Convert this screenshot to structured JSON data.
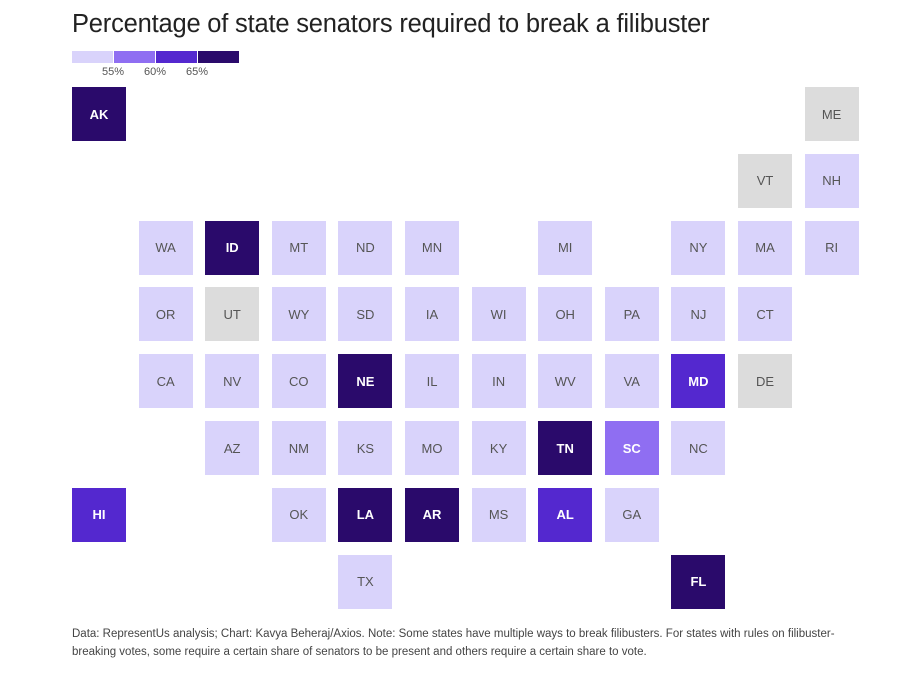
{
  "title": "Percentage of state senators required to break a filibuster",
  "footnote": "Data: RepresentUs analysis; Chart: Kavya Beheraj/Axios. Note: Some states have multiple ways to break filibusters. For states with rules on filibuster-breaking votes, some require a certain share of senators to be present and others require a certain share to vote.",
  "colors": {
    "none": "#dcdcdc",
    "below55": "#d9d3fb",
    "55": "#8f6ef2",
    "60": "#5428cf",
    "65": "#2a0a6b",
    "label_dark": "#555555",
    "label_light": "#ffffff"
  },
  "legend": {
    "levels": [
      "below55",
      "55",
      "60",
      "65"
    ],
    "labels": [
      "55%",
      "60%",
      "65%"
    ]
  },
  "chart_data": {
    "type": "tile-map",
    "title": "Percentage of state senators required to break a filibuster",
    "legend_thresholds": [
      "55%",
      "60%",
      "65%"
    ],
    "states": [
      {
        "abbr": "AK",
        "level": "65",
        "row": 0,
        "col": 0
      },
      {
        "abbr": "ME",
        "level": "none",
        "row": 0,
        "col": 11
      },
      {
        "abbr": "VT",
        "level": "none",
        "row": 1,
        "col": 10
      },
      {
        "abbr": "NH",
        "level": "below55",
        "row": 1,
        "col": 11
      },
      {
        "abbr": "WA",
        "level": "below55",
        "row": 2,
        "col": 1
      },
      {
        "abbr": "ID",
        "level": "65",
        "row": 2,
        "col": 2
      },
      {
        "abbr": "MT",
        "level": "below55",
        "row": 2,
        "col": 3
      },
      {
        "abbr": "ND",
        "level": "below55",
        "row": 2,
        "col": 4
      },
      {
        "abbr": "MN",
        "level": "below55",
        "row": 2,
        "col": 5
      },
      {
        "abbr": "MI",
        "level": "below55",
        "row": 2,
        "col": 7
      },
      {
        "abbr": "NY",
        "level": "below55",
        "row": 2,
        "col": 9
      },
      {
        "abbr": "MA",
        "level": "below55",
        "row": 2,
        "col": 10
      },
      {
        "abbr": "RI",
        "level": "below55",
        "row": 2,
        "col": 11
      },
      {
        "abbr": "OR",
        "level": "below55",
        "row": 3,
        "col": 1
      },
      {
        "abbr": "UT",
        "level": "none",
        "row": 3,
        "col": 2
      },
      {
        "abbr": "WY",
        "level": "below55",
        "row": 3,
        "col": 3
      },
      {
        "abbr": "SD",
        "level": "below55",
        "row": 3,
        "col": 4
      },
      {
        "abbr": "IA",
        "level": "below55",
        "row": 3,
        "col": 5
      },
      {
        "abbr": "WI",
        "level": "below55",
        "row": 3,
        "col": 6
      },
      {
        "abbr": "OH",
        "level": "below55",
        "row": 3,
        "col": 7
      },
      {
        "abbr": "PA",
        "level": "below55",
        "row": 3,
        "col": 8
      },
      {
        "abbr": "NJ",
        "level": "below55",
        "row": 3,
        "col": 9
      },
      {
        "abbr": "CT",
        "level": "below55",
        "row": 3,
        "col": 10
      },
      {
        "abbr": "CA",
        "level": "below55",
        "row": 4,
        "col": 1
      },
      {
        "abbr": "NV",
        "level": "below55",
        "row": 4,
        "col": 2
      },
      {
        "abbr": "CO",
        "level": "below55",
        "row": 4,
        "col": 3
      },
      {
        "abbr": "NE",
        "level": "65",
        "row": 4,
        "col": 4
      },
      {
        "abbr": "IL",
        "level": "below55",
        "row": 4,
        "col": 5
      },
      {
        "abbr": "IN",
        "level": "below55",
        "row": 4,
        "col": 6
      },
      {
        "abbr": "WV",
        "level": "below55",
        "row": 4,
        "col": 7
      },
      {
        "abbr": "VA",
        "level": "below55",
        "row": 4,
        "col": 8
      },
      {
        "abbr": "MD",
        "level": "60",
        "row": 4,
        "col": 9
      },
      {
        "abbr": "DE",
        "level": "none",
        "row": 4,
        "col": 10
      },
      {
        "abbr": "AZ",
        "level": "below55",
        "row": 5,
        "col": 2
      },
      {
        "abbr": "NM",
        "level": "below55",
        "row": 5,
        "col": 3
      },
      {
        "abbr": "KS",
        "level": "below55",
        "row": 5,
        "col": 4
      },
      {
        "abbr": "MO",
        "level": "below55",
        "row": 5,
        "col": 5
      },
      {
        "abbr": "KY",
        "level": "below55",
        "row": 5,
        "col": 6
      },
      {
        "abbr": "TN",
        "level": "65",
        "row": 5,
        "col": 7
      },
      {
        "abbr": "SC",
        "level": "55",
        "row": 5,
        "col": 8
      },
      {
        "abbr": "NC",
        "level": "below55",
        "row": 5,
        "col": 9
      },
      {
        "abbr": "HI",
        "level": "60",
        "row": 6,
        "col": 0
      },
      {
        "abbr": "OK",
        "level": "below55",
        "row": 6,
        "col": 3
      },
      {
        "abbr": "LA",
        "level": "65",
        "row": 6,
        "col": 4
      },
      {
        "abbr": "AR",
        "level": "65",
        "row": 6,
        "col": 5
      },
      {
        "abbr": "MS",
        "level": "below55",
        "row": 6,
        "col": 6
      },
      {
        "abbr": "AL",
        "level": "60",
        "row": 6,
        "col": 7
      },
      {
        "abbr": "GA",
        "level": "below55",
        "row": 6,
        "col": 8
      },
      {
        "abbr": "TX",
        "level": "below55",
        "row": 7,
        "col": 4
      },
      {
        "abbr": "FL",
        "level": "65",
        "row": 7,
        "col": 9
      }
    ]
  }
}
